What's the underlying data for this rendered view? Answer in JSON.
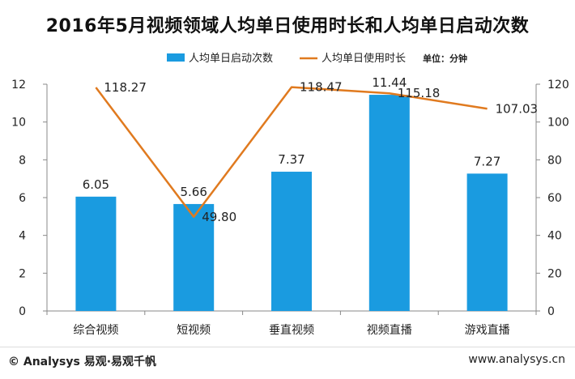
{
  "chart_data": {
    "type": "bar+line",
    "title": "2016年5月视频领域人均单日使用时长和人均单日启动次数",
    "categories": [
      "综合视频",
      "短视频",
      "垂直视频",
      "视频直播",
      "游戏直播"
    ],
    "series": [
      {
        "name": "人均单日启动次数",
        "type": "bar",
        "axis": "left",
        "values": [
          6.05,
          5.66,
          7.37,
          11.44,
          7.27
        ],
        "labels": [
          "6.05",
          "5.66",
          "7.37",
          "11.44",
          "7.27"
        ],
        "color": "#1a9be0"
      },
      {
        "name": "人均单日使用时长",
        "type": "line",
        "axis": "right",
        "values": [
          118.27,
          49.8,
          118.47,
          115.18,
          107.03
        ],
        "labels": [
          "118.27",
          "49.80",
          "118.47",
          "115.18",
          "107.03"
        ],
        "color": "#e07a1f"
      }
    ],
    "unit_note": "单位：分钟",
    "y_left": {
      "min": 0,
      "max": 12,
      "ticks": [
        0,
        2,
        4,
        6,
        8,
        10,
        12
      ]
    },
    "y_right": {
      "min": 0,
      "max": 120,
      "ticks": [
        0,
        20,
        40,
        60,
        80,
        100,
        120
      ]
    },
    "legend_position": "top-center",
    "grid": false
  },
  "footer": {
    "source": "© Analysys 易观·易观千帆",
    "url": "www.analysys.cn"
  }
}
